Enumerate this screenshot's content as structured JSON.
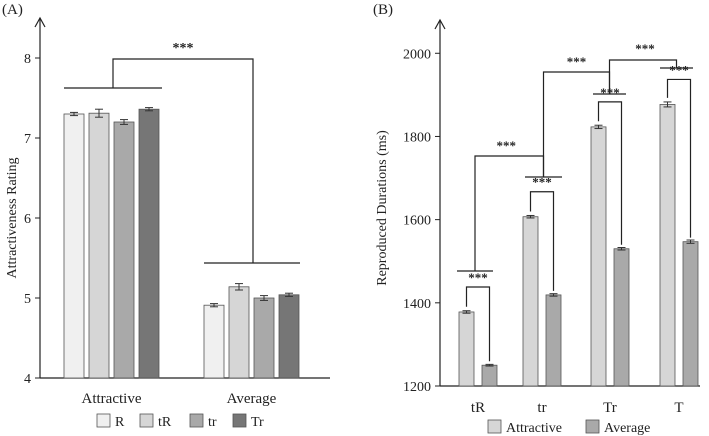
{
  "chart_data": [
    {
      "panel_label": "(A)",
      "type": "bar",
      "ylabel": "Attractiveness Rating",
      "ylim": [
        4,
        8.5
      ],
      "yticks": [
        "4",
        "5",
        "6",
        "7",
        "8"
      ],
      "categories": [
        "Attractive",
        "Average"
      ],
      "series": [
        {
          "name": "R",
          "color": "#f0f0f0",
          "values": [
            7.3,
            4.91
          ],
          "errors": [
            0.02,
            0.02
          ]
        },
        {
          "name": "tR",
          "color": "#d6d6d6",
          "values": [
            7.31,
            5.14
          ],
          "errors": [
            0.05,
            0.04
          ]
        },
        {
          "name": "tr",
          "color": "#a9a9a9",
          "values": [
            7.2,
            5.0
          ],
          "errors": [
            0.03,
            0.03
          ]
        },
        {
          "name": "Tr",
          "color": "#767676",
          "values": [
            7.36,
            5.04
          ],
          "errors": [
            0.02,
            0.02
          ]
        }
      ],
      "significance": [
        {
          "label": "***",
          "between": [
            "Attractive",
            "Average"
          ]
        }
      ]
    },
    {
      "panel_label": "(B)",
      "type": "bar",
      "ylabel": "Reproduced Durations (ms)",
      "ylim": [
        1200,
        2080
      ],
      "yticks": [
        "1200",
        "1400",
        "1600",
        "1800",
        "2000"
      ],
      "categories": [
        "tR",
        "tr",
        "Tr",
        "T"
      ],
      "series": [
        {
          "name": "Attractive",
          "color": "#d6d6d6",
          "values": [
            1378,
            1607,
            1823,
            1877
          ],
          "errors": [
            3,
            3,
            4,
            6
          ]
        },
        {
          "name": "Average",
          "color": "#a9a9a9",
          "values": [
            1250,
            1419,
            1530,
            1547
          ],
          "errors": [
            2,
            3,
            3,
            4
          ]
        }
      ],
      "significance": [
        {
          "label": "***",
          "between": [
            "tR:Attractive",
            "tR:Average"
          ]
        },
        {
          "label": "***",
          "between": [
            "tr:Attractive",
            "tr:Average"
          ]
        },
        {
          "label": "***",
          "between": [
            "Tr:Attractive",
            "Tr:Average"
          ]
        },
        {
          "label": "***",
          "between": [
            "T:Attractive",
            "T:Average"
          ]
        },
        {
          "label": "***",
          "between": [
            "tR",
            "tr"
          ]
        },
        {
          "label": "***",
          "between": [
            "tr",
            "Tr"
          ]
        },
        {
          "label": "***",
          "between": [
            "Tr",
            "T"
          ]
        }
      ]
    }
  ]
}
